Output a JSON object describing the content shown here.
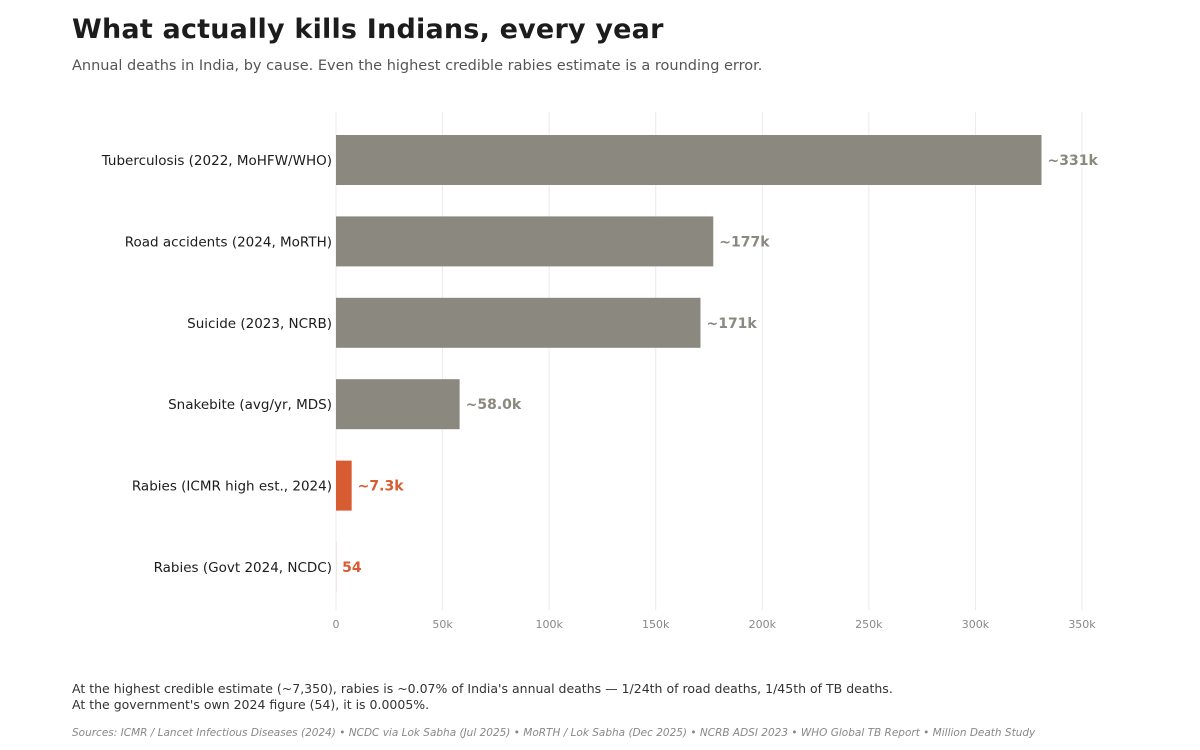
{
  "header": {
    "title": "What actually kills Indians, every year",
    "subtitle": "Annual deaths in India, by cause. Even the highest credible rabies estimate is a rounding error."
  },
  "chart_data": {
    "type": "bar",
    "orientation": "horizontal",
    "categories": [
      "Tuberculosis (2022, MoHFW/WHO)",
      "Road accidents (2024, MoRTH)",
      "Suicide (2023, NCRB)",
      "Snakebite (avg/yr, MDS)",
      "Rabies (ICMR high est., 2024)",
      "Rabies (Govt 2024, NCDC)"
    ],
    "values": [
      331000,
      177000,
      171000,
      58000,
      7350,
      54
    ],
    "data_labels": [
      "~331k",
      "~177k",
      "~171k",
      "~58.0k",
      "~7.3k",
      "54"
    ],
    "highlight": [
      false,
      false,
      false,
      false,
      true,
      true
    ],
    "x_ticks": [
      0,
      50000,
      100000,
      150000,
      200000,
      250000,
      300000,
      350000
    ],
    "x_tick_labels": [
      "0",
      "50k",
      "100k",
      "150k",
      "200k",
      "250k",
      "300k",
      "350k"
    ],
    "xlim": [
      0,
      350000
    ],
    "grid": "vertical",
    "xlabel": "",
    "ylabel": "",
    "colors": {
      "default_bar": "#8a887f",
      "highlight_bar": "#d85c32",
      "default_label": "#8a887f",
      "highlight_label": "#d85c32",
      "category_text": "#1c1c1c",
      "tick_text": "#888888",
      "grid": "#ebebeb"
    }
  },
  "footer": {
    "note_line1": "At the highest credible estimate (~7,350), rabies is ~0.07% of India's annual deaths — 1/24th of road deaths, 1/45th of TB deaths.",
    "note_line2": "At the government's own 2024 figure (54), it is 0.0005%.",
    "sources": "Sources: ICMR / Lancet Infectious Diseases (2024)  •  NCDC via Lok Sabha (Jul 2025)  •  MoRTH / Lok Sabha (Dec 2025)  •  NCRB ADSI 2023  •  WHO Global TB Report  •  Million Death Study"
  }
}
